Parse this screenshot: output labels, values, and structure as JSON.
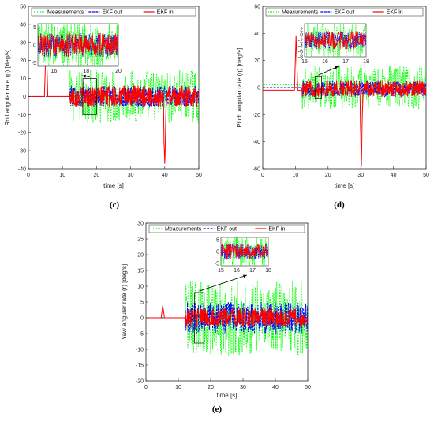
{
  "colors": {
    "measurements": "#00ff00",
    "ekf_out": "#0000ff",
    "ekf_in": "#ff0000",
    "axis": "#262626",
    "zoom_box": "#000000"
  },
  "chart_data": [
    {
      "id": "c",
      "type": "line",
      "caption": "(c)",
      "xlabel": "time [s]",
      "ylabel": "Roll angular rate (p) [deg/s]",
      "xlim": [
        0,
        50
      ],
      "ylim": [
        -40,
        50
      ],
      "xticks": [
        0,
        10,
        20,
        30,
        40,
        50
      ],
      "yticks": [
        -40,
        -30,
        -20,
        -10,
        0,
        10,
        20,
        30,
        40,
        50
      ],
      "legend": [
        "Measurements",
        "EKF out",
        "EKF in"
      ],
      "legend_position": "top",
      "series": [
        {
          "name": "Measurements",
          "style": "dotted",
          "noise_start": 12,
          "amplitude": 15,
          "offset": 0
        },
        {
          "name": "EKF out",
          "style": "dashed",
          "noise_start": 12,
          "amplitude": 6,
          "offset": 0
        },
        {
          "name": "EKF in",
          "style": "solid",
          "noise_start": 12,
          "amplitude": 6,
          "offset": 0,
          "spikes": [
            {
              "x": 5.2,
              "y": 31
            },
            {
              "x": 40,
              "y": -36
            }
          ]
        }
      ],
      "zoom_region": {
        "x": [
          16,
          20
        ],
        "y": [
          -10,
          10
        ]
      },
      "inset": {
        "xlim": [
          15,
          20
        ],
        "ylim": [
          -6,
          6
        ],
        "xticks": [
          16,
          18,
          20
        ],
        "yticks": [
          -5,
          0,
          5
        ]
      }
    },
    {
      "id": "d",
      "type": "line",
      "caption": "(d)",
      "xlabel": "time [s]",
      "ylabel": "Pitch angular rate (q) [deg/s]",
      "xlim": [
        0,
        50
      ],
      "ylim": [
        -60,
        60
      ],
      "xticks": [
        0,
        10,
        20,
        30,
        40,
        50
      ],
      "yticks": [
        -60,
        -40,
        -20,
        0,
        20,
        40,
        60
      ],
      "legend": [
        "Measurements",
        "EKF out",
        "EKF in"
      ],
      "legend_position": "top",
      "series": [
        {
          "name": "Measurements",
          "style": "dotted",
          "noise_start": 12,
          "amplitude": 16,
          "offset": 0,
          "pre_value": 2
        },
        {
          "name": "EKF out",
          "style": "dashed",
          "noise_start": 12,
          "amplitude": 6,
          "offset": -1
        },
        {
          "name": "EKF in",
          "style": "solid",
          "noise_start": 12,
          "amplitude": 6,
          "offset": -1,
          "pre_value": -2,
          "spikes": [
            {
              "x": 10.2,
              "y": 40
            },
            {
              "x": 30.2,
              "y": -52
            }
          ]
        }
      ],
      "zoom_region": {
        "x": [
          16,
          18
        ],
        "y": [
          -8,
          8
        ]
      },
      "inset": {
        "xlim": [
          15,
          18
        ],
        "ylim": [
          -8,
          4
        ],
        "xticks": [
          15,
          16,
          17,
          18
        ],
        "yticks": [
          -8,
          -6,
          -4,
          -2,
          0,
          2
        ]
      }
    },
    {
      "id": "e",
      "type": "line",
      "caption": "(e)",
      "xlabel": "time [s]",
      "ylabel": "Yaw angular rate (r) [deg/s]",
      "xlim": [
        0,
        50
      ],
      "ylim": [
        -20,
        30
      ],
      "xticks": [
        0,
        10,
        20,
        30,
        40,
        50
      ],
      "yticks": [
        -20,
        -15,
        -10,
        -5,
        0,
        5,
        10,
        15,
        20,
        25,
        30
      ],
      "legend": [
        "Measurements",
        "EKF out",
        "EKF in"
      ],
      "legend_position": "top",
      "series": [
        {
          "name": "Measurements",
          "style": "dotted",
          "noise_start": 12,
          "amplitude": 12,
          "offset": 0
        },
        {
          "name": "EKF out",
          "style": "dashed",
          "noise_start": 12,
          "amplitude": 5,
          "offset": 0
        },
        {
          "name": "EKF in",
          "style": "solid",
          "noise_start": 12,
          "amplitude": 3,
          "offset": 0,
          "spikes": [
            {
              "x": 5.2,
              "y": 4
            }
          ]
        }
      ],
      "zoom_region": {
        "x": [
          15,
          18
        ],
        "y": [
          -8,
          8
        ]
      },
      "inset": {
        "xlim": [
          15,
          18
        ],
        "ylim": [
          -6,
          6
        ],
        "xticks": [
          15,
          16,
          17,
          18
        ],
        "yticks": [
          -5,
          0,
          5
        ]
      }
    }
  ]
}
